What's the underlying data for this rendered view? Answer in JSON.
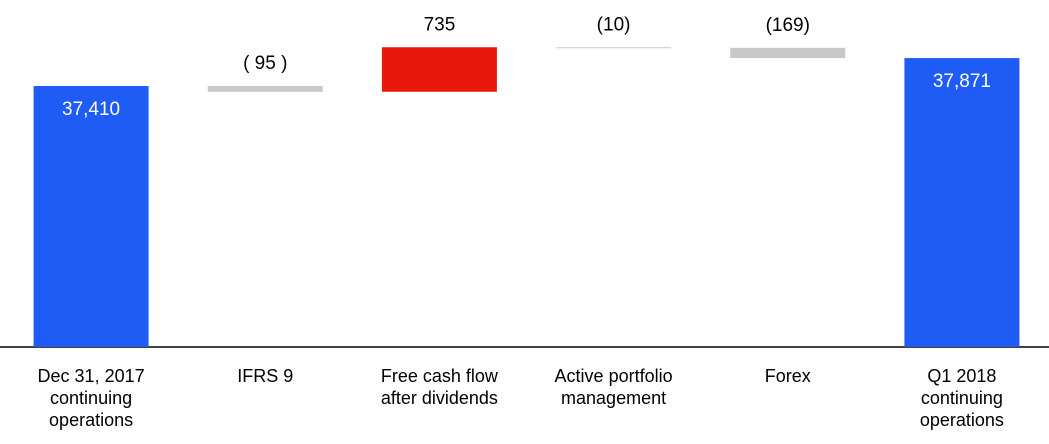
{
  "chart_data": {
    "type": "waterfall",
    "categories": [
      "Dec 31, 2017\ncontinuing\noperations",
      "IFRS 9",
      "Free cash flow\nafter dividends",
      "Active portfolio\nmanagement",
      "Forex",
      "Q1 2018\ncontinuing\noperations"
    ],
    "values": [
      37410,
      -95,
      735,
      -10,
      -169,
      37871
    ],
    "value_labels": [
      "37,410",
      "( 95 )",
      "735",
      "(10)",
      "(169)",
      "37,871"
    ],
    "totals": [
      true,
      false,
      false,
      false,
      false,
      true
    ],
    "colors": [
      "#1f5cf6",
      "#c8c8c8",
      "#e8190c",
      "#c8c8c8",
      "#c8c8c8",
      "#1f5cf6"
    ],
    "ylim": [
      33100,
      38500
    ]
  }
}
